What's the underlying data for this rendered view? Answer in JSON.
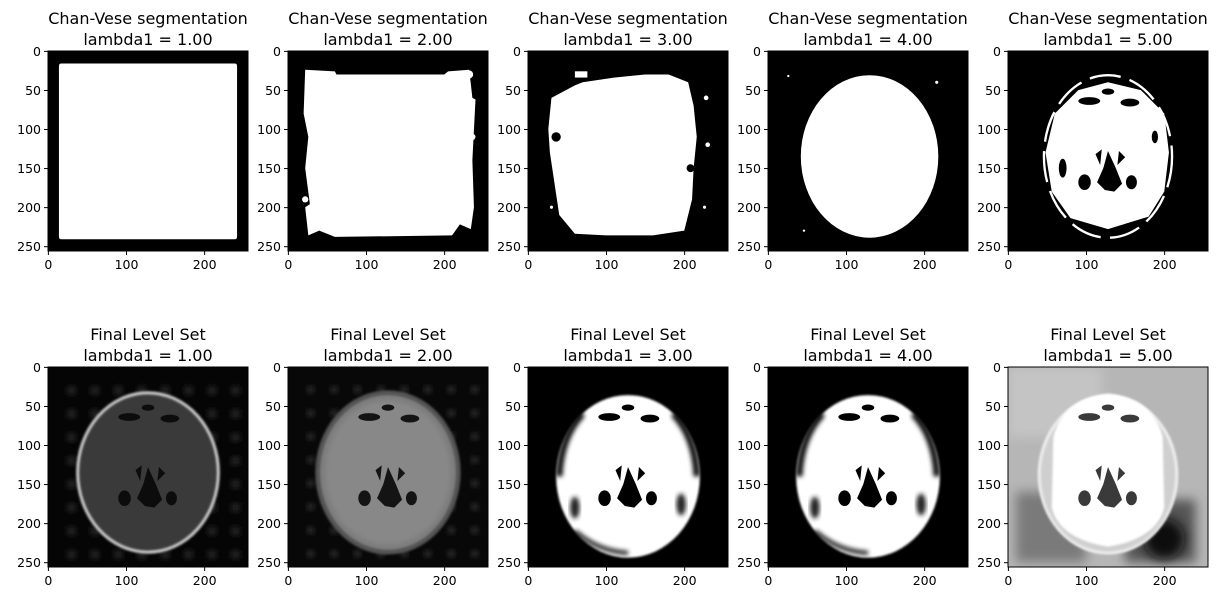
{
  "figure": {
    "rows": [
      {
        "title": "Chan-Vese segmentation",
        "panels": [
          {
            "lambda_label": "lambda1 = 1.00",
            "style": "rect"
          },
          {
            "lambda_label": "lambda1 = 2.00",
            "style": "rect-notched"
          },
          {
            "lambda_label": "lambda1 = 3.00",
            "style": "rough-blob"
          },
          {
            "lambda_label": "lambda1 = 4.00",
            "style": "head-mask"
          },
          {
            "lambda_label": "lambda1 = 5.00",
            "style": "brain-mask"
          }
        ]
      },
      {
        "title": "Final Level Set",
        "panels": [
          {
            "lambda_label": "lambda1 = 1.00",
            "style": "levelset-dark"
          },
          {
            "lambda_label": "lambda1 = 2.00",
            "style": "levelset-gray"
          },
          {
            "lambda_label": "lambda1 = 3.00",
            "style": "levelset-bright"
          },
          {
            "lambda_label": "lambda1 = 4.00",
            "style": "levelset-bright"
          },
          {
            "lambda_label": "lambda1 = 5.00",
            "style": "levelset-graybg"
          }
        ]
      }
    ],
    "x_ticks": [
      "0",
      "100",
      "200"
    ],
    "y_ticks": [
      "0",
      "50",
      "100",
      "150",
      "200",
      "250"
    ],
    "image_size": 256,
    "colors": {
      "black": "#000000",
      "white": "#ffffff",
      "frame": "#000000"
    }
  }
}
